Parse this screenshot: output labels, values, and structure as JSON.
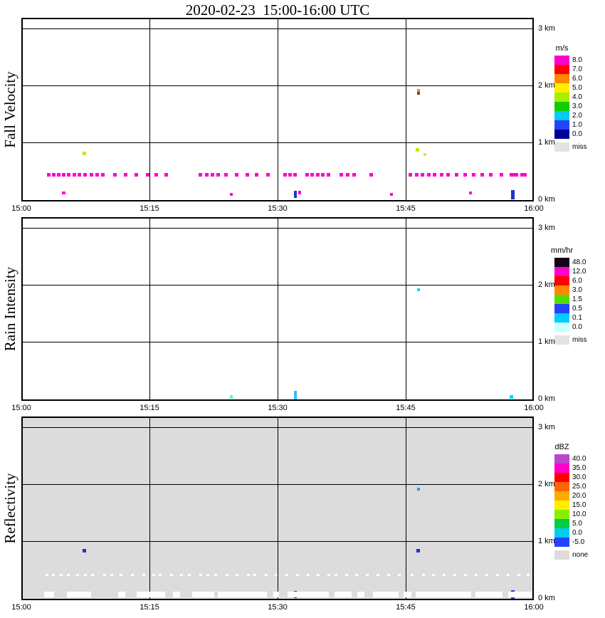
{
  "page_title": "2020-02-23  15:00-16:00 UTC",
  "chart_data": [
    {
      "type": "heatmap",
      "title": "Fall Velocity",
      "unit": "m/s",
      "x_range_minutes": [
        0,
        60
      ],
      "y_range_km": [
        0,
        3.2
      ],
      "grid": true,
      "background": "#ffffff",
      "x_label_ticks": [
        {
          "label": "15:00",
          "min": 0
        },
        {
          "label": "15:15",
          "min": 15
        },
        {
          "label": "15:30",
          "min": 30
        },
        {
          "label": "15:45",
          "min": 45
        },
        {
          "label": "16:00",
          "min": 60
        }
      ],
      "y_label_ticks": [
        {
          "label": "0 km",
          "km": 0
        },
        {
          "label": "1 km",
          "km": 1
        },
        {
          "label": "2 km",
          "km": 2
        },
        {
          "label": "3 km",
          "km": 3
        }
      ],
      "legend": {
        "title": "m/s",
        "entries": [
          {
            "label": "8.0",
            "color": "#ff00cc"
          },
          {
            "label": "7.0",
            "color": "#ff0000"
          },
          {
            "label": "6.0",
            "color": "#ff8800"
          },
          {
            "label": "5.0",
            "color": "#ffee00"
          },
          {
            "label": "4.0",
            "color": "#aaee00"
          },
          {
            "label": "3.0",
            "color": "#11cc00"
          },
          {
            "label": "2.0",
            "color": "#00ccee"
          },
          {
            "label": "1.0",
            "color": "#2244ff"
          },
          {
            "label": "0.0",
            "color": "#000099"
          }
        ],
        "extra": {
          "label": "miss",
          "color": "#e3e3e3"
        }
      },
      "rows": [
        {
          "km": 0.45,
          "w": 5,
          "h": 5,
          "color": "#ff00cc",
          "minutes": [
            3.0,
            3.6,
            4.2,
            4.8,
            5.4,
            6.0,
            6.6,
            7.3,
            8.0,
            8.7,
            9.4,
            10.8,
            12.0,
            13.3,
            14.6,
            15.6,
            16.8,
            20.8,
            21.5,
            22.2,
            22.9,
            23.8,
            25.0,
            26.3,
            27.4,
            28.7,
            30.7,
            31.3,
            31.9,
            33.3,
            33.9,
            34.5,
            35.1,
            35.8,
            37.3,
            38.0,
            38.8,
            40.8,
            45.4,
            46.1,
            46.8,
            47.5,
            48.2,
            49.0,
            49.8,
            50.8,
            51.8,
            52.8,
            53.8,
            54.8,
            56.0
          ]
        }
      ],
      "points": [
        [
          57.5,
          0.45,
          12,
          5,
          "#ff00cc"
        ],
        [
          58.6,
          0.45,
          9,
          5,
          "#ff00cc"
        ],
        [
          7.2,
          0.82,
          5,
          5,
          "#bbee00"
        ],
        [
          46.3,
          1.93,
          4,
          4,
          "#ff8800"
        ],
        [
          46.3,
          1.87,
          4,
          4,
          "#883322"
        ],
        [
          46.2,
          0.88,
          5,
          5,
          "#bbee00"
        ],
        [
          47.1,
          0.8,
          4,
          4,
          "#ccee44"
        ],
        [
          4.8,
          0.12,
          5,
          4,
          "#ff00cc"
        ],
        [
          24.4,
          0.1,
          4,
          4,
          "#ff00cc"
        ],
        [
          31.9,
          0.1,
          4,
          10,
          "#2233cc"
        ],
        [
          32.4,
          0.13,
          4,
          5,
          "#ff00cc"
        ],
        [
          43.2,
          0.1,
          4,
          4,
          "#ff00cc"
        ],
        [
          52.4,
          0.12,
          4,
          4,
          "#ff00cc"
        ],
        [
          57.4,
          0.09,
          5,
          13,
          "#2233cc"
        ]
      ],
      "segments": []
    },
    {
      "type": "heatmap",
      "title": "Rain Intensity",
      "unit": "mm/hr",
      "x_range_minutes": [
        0,
        60
      ],
      "y_range_km": [
        0,
        3.2
      ],
      "grid": true,
      "background": "#ffffff",
      "x_label_ticks": [
        {
          "label": "15:00",
          "min": 0
        },
        {
          "label": "15:15",
          "min": 15
        },
        {
          "label": "15:30",
          "min": 30
        },
        {
          "label": "15:45",
          "min": 45
        },
        {
          "label": "16:00",
          "min": 60
        }
      ],
      "y_label_ticks": [
        {
          "label": "0 km",
          "km": 0
        },
        {
          "label": "1 km",
          "km": 1
        },
        {
          "label": "2 km",
          "km": 2
        },
        {
          "label": "3 km",
          "km": 3
        }
      ],
      "legend": {
        "title": "mm/hr",
        "entries": [
          {
            "label": "48.0",
            "color": "#150015"
          },
          {
            "label": "12.0",
            "color": "#ff00cc"
          },
          {
            "label": "6.0",
            "color": "#ff0000"
          },
          {
            "label": "3.0",
            "color": "#ff8800"
          },
          {
            "label": "1.5",
            "color": "#55dd00"
          },
          {
            "label": "0.5",
            "color": "#2244ff"
          },
          {
            "label": "0.1",
            "color": "#00ccff"
          },
          {
            "label": "0.0",
            "color": "#ccffff"
          }
        ],
        "extra": {
          "label": "miss",
          "color": "#e3e3e3"
        }
      },
      "rows": [],
      "points": [
        [
          46.3,
          1.93,
          4,
          4,
          "#00ddee"
        ],
        [
          24.4,
          0.05,
          4,
          5,
          "#66eedd"
        ],
        [
          31.9,
          0.08,
          4,
          12,
          "#33bbff"
        ],
        [
          57.2,
          0.05,
          5,
          5,
          "#00ddee"
        ]
      ],
      "segments": []
    },
    {
      "type": "heatmap",
      "title": "Reflectivity",
      "unit": "dBZ",
      "x_range_minutes": [
        0,
        60
      ],
      "y_range_km": [
        0,
        3.2
      ],
      "grid": true,
      "background": "#dcdcdc",
      "x_label_ticks": [
        {
          "label": "15:00",
          "min": 0
        },
        {
          "label": "15:15",
          "min": 15
        },
        {
          "label": "15:30",
          "min": 30
        },
        {
          "label": "15:45",
          "min": 45
        },
        {
          "label": "16:00",
          "min": 60
        }
      ],
      "y_label_ticks": [
        {
          "label": "0 km",
          "km": 0
        },
        {
          "label": "1 km",
          "km": 1
        },
        {
          "label": "2 km",
          "km": 2
        },
        {
          "label": "3 km",
          "km": 3
        }
      ],
      "legend": {
        "title": "dBZ",
        "entries": [
          {
            "label": "40.0",
            "color": "#bb44cc"
          },
          {
            "label": "35.0",
            "color": "#ff00cc"
          },
          {
            "label": "30.0",
            "color": "#ff0000"
          },
          {
            "label": "25.0",
            "color": "#ff6600"
          },
          {
            "label": "20.0",
            "color": "#ffaa00"
          },
          {
            "label": "15.0",
            "color": "#ffee00"
          },
          {
            "label": "10.0",
            "color": "#88ee00"
          },
          {
            "label": "5.0",
            "color": "#00cc44"
          },
          {
            "label": "0.0",
            "color": "#00ccee"
          },
          {
            "label": "-5.0",
            "color": "#2244ff"
          }
        ],
        "extra": {
          "label": "none",
          "color": "#dcdcdc"
        }
      },
      "rows": [
        {
          "km": 0.42,
          "w": 4,
          "h": 3,
          "color": "#ffffff",
          "minutes": [
            2.8,
            3.6,
            4.5,
            5.3,
            6.4,
            7.3,
            8.2,
            9.6,
            10.4,
            11.5,
            12.8,
            14.2,
            15.3,
            16.1,
            17.4,
            18.6,
            19.5,
            20.8,
            21.7,
            22.6,
            23.9,
            25.1,
            26.4,
            27.2,
            28.5,
            29.7,
            30.9,
            32.2,
            33.4,
            34.6,
            35.8,
            36.7,
            37.9,
            39.1,
            40.3,
            41.6,
            42.8,
            44.1,
            45.6,
            46.9,
            48.1,
            49.3,
            50.6,
            51.8,
            53.1,
            54.3,
            55.6,
            56.8,
            58.1,
            59.2
          ]
        }
      ],
      "points": [
        [
          7.2,
          0.85,
          5,
          5,
          "#2233cc"
        ],
        [
          46.3,
          1.93,
          4,
          4,
          "#00aaee"
        ],
        [
          46.3,
          0.85,
          5,
          5,
          "#2233cc"
        ],
        [
          31.9,
          0.07,
          4,
          10,
          "#2233cc"
        ],
        [
          57.4,
          0.07,
          5,
          12,
          "#2233cc"
        ]
      ],
      "segments": [
        {
          "km": 0.07,
          "h": 8,
          "color": "#ffffff",
          "spans": [
            [
              2.5,
              1.2
            ],
            [
              5.2,
              2.8
            ],
            [
              11.2,
              0.8
            ],
            [
              13.3,
              3.4
            ],
            [
              17.6,
              0.8
            ],
            [
              19.8,
              2.6
            ],
            [
              22.8,
              5.8
            ],
            [
              29.3,
              0.7
            ],
            [
              31.0,
              4.8
            ],
            [
              36.5,
              2.0
            ],
            [
              39.2,
              0.8
            ],
            [
              41.0,
              3.0
            ],
            [
              44.6,
              0.9
            ],
            [
              46.0,
              6.5
            ],
            [
              53.0,
              3.2
            ],
            [
              56.8,
              2.8
            ]
          ]
        }
      ]
    }
  ]
}
